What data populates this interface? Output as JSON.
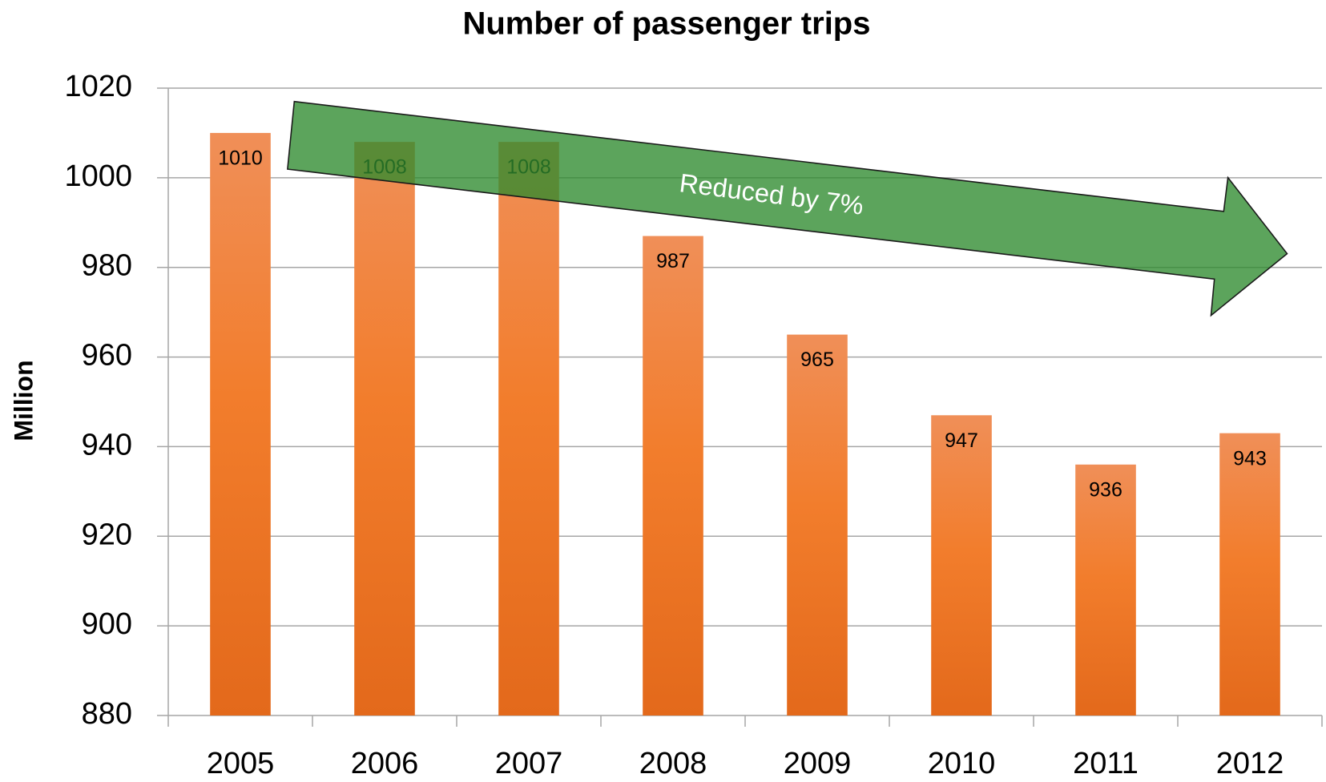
{
  "chart_data": {
    "type": "bar",
    "title": "Number of passenger trips",
    "y_label": "Million",
    "categories": [
      "2005",
      "2006",
      "2007",
      "2008",
      "2009",
      "2010",
      "2011",
      "2012"
    ],
    "values": [
      1010,
      1008,
      1008,
      987,
      965,
      947,
      936,
      943
    ],
    "color": "#f07d2e",
    "ylim": [
      880,
      1020
    ],
    "yticks": [
      880,
      900,
      920,
      940,
      960,
      980,
      1000,
      1020
    ],
    "grid": true,
    "annotation": "Reduced by 7%"
  }
}
